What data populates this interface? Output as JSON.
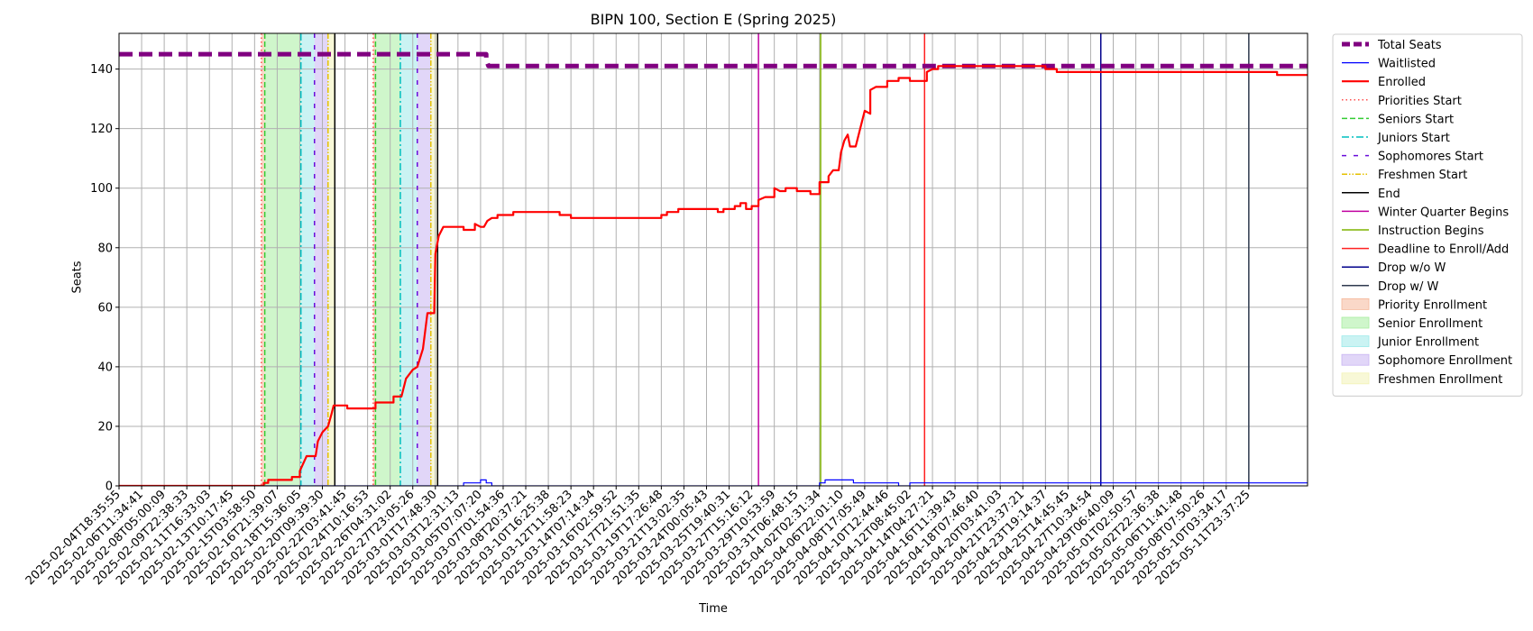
{
  "chart_data": {
    "type": "line",
    "title": "BIPN 100, Section E (Spring 2025)",
    "xlabel": "Time",
    "ylabel": "Seats",
    "ylim": [
      0,
      152
    ],
    "yticks": [
      0,
      20,
      40,
      60,
      80,
      100,
      120,
      140
    ],
    "grid": true,
    "legend_position": "outside-right",
    "xtick_labels": [
      "2025-02-04T18:35:55",
      "2025-02-06T11:34:41",
      "2025-02-08T05:00:09",
      "2025-02-09T22:38:33",
      "2025-02-11T16:33:03",
      "2025-02-13T10:17:45",
      "2025-02-15T03:58:50",
      "2025-02-16T21:39:07",
      "2025-02-18T15:36:05",
      "2025-02-20T09:39:30",
      "2025-02-22T03:41:45",
      "2025-02-24T10:16:53",
      "2025-02-26T04:31:02",
      "2025-02-27T23:05:26",
      "2025-03-01T17:48:30",
      "2025-03-03T12:31:13",
      "2025-03-05T07:07:20",
      "2025-03-07T01:54:36",
      "2025-03-08T20:37:21",
      "2025-03-10T16:25:38",
      "2025-03-12T11:58:23",
      "2025-03-14T07:14:34",
      "2025-03-16T02:59:52",
      "2025-03-17T21:51:35",
      "2025-03-19T17:26:48",
      "2025-03-21T13:02:35",
      "2025-03-24T00:05:43",
      "2025-03-25T19:40:31",
      "2025-03-27T15:16:12",
      "2025-03-29T10:53:59",
      "2025-03-31T06:48:15",
      "2025-04-02T02:31:34",
      "2025-04-06T22:01:10",
      "2025-04-08T17:05:49",
      "2025-04-10T12:44:46",
      "2025-04-12T08:45:02",
      "2025-04-14T04:27:21",
      "2025-04-16T11:39:43",
      "2025-04-18T07:46:40",
      "2025-04-20T03:41:03",
      "2025-04-21T23:37:21",
      "2025-04-23T19:14:37",
      "2025-04-25T14:45:45",
      "2025-04-27T10:34:54",
      "2025-04-29T06:40:09",
      "2025-05-01T02:50:57",
      "2025-05-02T22:36:38",
      "2025-05-06T11:41:48",
      "2025-05-08T07:50:26",
      "2025-05-10T03:34:17",
      "2025-05-11T23:37:25"
    ],
    "xtick_positions": [
      0,
      2,
      4,
      6,
      8,
      10,
      12,
      14,
      16,
      18,
      20,
      22,
      24,
      26,
      28,
      30,
      32,
      34,
      36,
      38,
      40,
      42,
      44,
      46,
      48,
      50,
      52,
      54,
      56,
      58,
      60,
      62,
      64,
      66,
      68,
      70,
      72,
      74,
      76,
      78,
      80,
      82,
      84,
      86,
      88,
      90,
      92,
      94,
      96,
      98,
      100
    ],
    "xlim": [
      0,
      105.2
    ],
    "series": [
      {
        "name": "Total Seats",
        "color": "#800080",
        "style": "dashed-thick",
        "points": [
          [
            0,
            145
          ],
          [
            32.5,
            145
          ],
          [
            32.5,
            143
          ],
          [
            32.7,
            141
          ],
          [
            105.2,
            141
          ]
        ]
      },
      {
        "name": "Waitlisted",
        "color": "#0000ff",
        "style": "solid",
        "points": [
          [
            0,
            0
          ],
          [
            30.5,
            0
          ],
          [
            30.5,
            1
          ],
          [
            32,
            1
          ],
          [
            32,
            2
          ],
          [
            32.5,
            2
          ],
          [
            32.5,
            1
          ],
          [
            33,
            1
          ],
          [
            33,
            0
          ],
          [
            62,
            0
          ],
          [
            62,
            1
          ],
          [
            62.5,
            1
          ],
          [
            62.5,
            2
          ],
          [
            65,
            2
          ],
          [
            65,
            1
          ],
          [
            69,
            1
          ],
          [
            69,
            0
          ],
          [
            70,
            0
          ],
          [
            70,
            1
          ],
          [
            105.2,
            1
          ]
        ]
      },
      {
        "name": "Enrolled",
        "color": "#ff0000",
        "style": "solid",
        "points": [
          [
            0,
            0
          ],
          [
            12.8,
            0
          ],
          [
            12.8,
            1
          ],
          [
            13.2,
            1
          ],
          [
            13.2,
            2
          ],
          [
            15.3,
            2
          ],
          [
            15.3,
            3
          ],
          [
            16,
            3
          ],
          [
            16,
            5
          ],
          [
            16.6,
            10
          ],
          [
            17.4,
            10
          ],
          [
            17.6,
            15
          ],
          [
            18,
            18
          ],
          [
            18.5,
            20
          ],
          [
            18.8,
            24
          ],
          [
            19,
            27
          ],
          [
            20.2,
            27
          ],
          [
            20.2,
            26
          ],
          [
            22.7,
            26
          ],
          [
            22.7,
            28
          ],
          [
            24.3,
            28
          ],
          [
            24.3,
            30
          ],
          [
            25,
            30
          ],
          [
            25.4,
            36
          ],
          [
            26,
            39
          ],
          [
            26.4,
            40
          ],
          [
            26.9,
            46
          ],
          [
            27.3,
            58
          ],
          [
            27.9,
            58
          ],
          [
            28,
            78
          ],
          [
            28.3,
            84
          ],
          [
            28.7,
            87
          ],
          [
            30.5,
            87
          ],
          [
            30.5,
            86
          ],
          [
            31.5,
            86
          ],
          [
            31.5,
            88
          ],
          [
            32,
            87
          ],
          [
            32.3,
            87
          ],
          [
            32.6,
            89
          ],
          [
            33,
            90
          ],
          [
            33.5,
            90
          ],
          [
            33.5,
            91
          ],
          [
            34.9,
            91
          ],
          [
            34.9,
            92
          ],
          [
            39,
            92
          ],
          [
            39,
            91
          ],
          [
            40,
            91
          ],
          [
            40,
            90
          ],
          [
            48,
            90
          ],
          [
            48,
            91
          ],
          [
            48.5,
            91
          ],
          [
            48.5,
            92
          ],
          [
            49.5,
            92
          ],
          [
            49.5,
            93
          ],
          [
            53,
            93
          ],
          [
            53,
            92
          ],
          [
            53.5,
            92
          ],
          [
            53.5,
            93
          ],
          [
            54.5,
            93
          ],
          [
            54.5,
            94
          ],
          [
            55,
            94
          ],
          [
            55,
            95
          ],
          [
            55.5,
            95
          ],
          [
            55.5,
            93
          ],
          [
            56,
            93
          ],
          [
            56,
            94
          ],
          [
            56.6,
            94
          ],
          [
            56.6,
            96
          ],
          [
            57.2,
            97
          ],
          [
            58,
            97
          ],
          [
            58,
            100
          ],
          [
            58.5,
            99
          ],
          [
            59,
            99
          ],
          [
            59,
            100
          ],
          [
            60,
            100
          ],
          [
            60,
            99
          ],
          [
            61.2,
            99
          ],
          [
            61.2,
            98
          ],
          [
            62,
            98
          ],
          [
            62,
            102
          ],
          [
            62.8,
            102
          ],
          [
            62.8,
            104
          ],
          [
            63.2,
            106
          ],
          [
            63.7,
            106
          ],
          [
            63.9,
            112
          ],
          [
            64.2,
            116
          ],
          [
            64.5,
            118
          ],
          [
            64.7,
            114
          ],
          [
            65.2,
            114
          ],
          [
            65.6,
            120
          ],
          [
            66,
            126
          ],
          [
            66.5,
            125
          ],
          [
            66.5,
            133
          ],
          [
            67,
            134
          ],
          [
            68,
            134
          ],
          [
            68,
            136
          ],
          [
            69,
            136
          ],
          [
            69,
            137
          ],
          [
            70,
            137
          ],
          [
            70,
            136
          ],
          [
            71.5,
            136
          ],
          [
            71.5,
            139
          ],
          [
            72,
            140
          ],
          [
            72.5,
            140
          ],
          [
            72.5,
            141
          ],
          [
            82,
            141
          ],
          [
            82,
            140
          ],
          [
            83,
            140
          ],
          [
            83,
            139
          ],
          [
            102.5,
            139
          ],
          [
            102.5,
            138
          ],
          [
            105.2,
            138
          ]
        ]
      }
    ],
    "vertical_markers": [
      {
        "name": "Priorities Start",
        "color": "#ff4d4d",
        "style": "dotted",
        "x": [
          12.6,
          22.5
        ]
      },
      {
        "name": "Seniors Start",
        "color": "#33cc33",
        "style": "dashed",
        "x": [
          12.9,
          22.7
        ]
      },
      {
        "name": "Juniors Start",
        "color": "#00bfbf",
        "style": "dashdot",
        "x": [
          16.1,
          24.9
        ]
      },
      {
        "name": "Sophomores Start",
        "color": "#6a0dda",
        "style": "loosedash",
        "x": [
          17.3,
          26.4
        ]
      },
      {
        "name": "Freshmen Start",
        "color": "#e5c100",
        "style": "dashdotdot",
        "x": [
          18.5,
          27.6
        ]
      },
      {
        "name": "End",
        "color": "#000000",
        "style": "solid",
        "x": [
          19.1,
          28.2
        ]
      },
      {
        "name": "Winter Quarter Begins",
        "color": "#c000a0",
        "style": "solid",
        "x": [
          56.6
        ]
      },
      {
        "name": "Instruction Begins",
        "color": "#7fb300",
        "style": "solid",
        "x": [
          62.1
        ]
      },
      {
        "name": "Deadline to Enroll/Add",
        "color": "#ff2020",
        "style": "solid",
        "x": [
          71.3
        ]
      },
      {
        "name": "Drop w/o W",
        "color": "#00008b",
        "style": "solid",
        "x": [
          86.9
        ]
      },
      {
        "name": "Drop w/ W",
        "color": "#2f3a4f",
        "style": "solid",
        "x": [
          100
        ]
      }
    ],
    "shaded_periods": [
      {
        "name": "Priority Enrollment",
        "color": "#f5b89a",
        "ranges": [
          [
            12.6,
            12.9
          ],
          [
            22.5,
            22.7
          ]
        ]
      },
      {
        "name": "Senior Enrollment",
        "color": "#a8eea0",
        "ranges": [
          [
            12.9,
            16.1
          ],
          [
            22.7,
            24.9
          ]
        ]
      },
      {
        "name": "Junior Enrollment",
        "color": "#9eeaea",
        "ranges": [
          [
            16.1,
            17.3
          ],
          [
            24.9,
            26.4
          ]
        ]
      },
      {
        "name": "Sophomore Enrollment",
        "color": "#c8b5f2",
        "ranges": [
          [
            17.3,
            18.5
          ],
          [
            26.4,
            27.6
          ]
        ]
      },
      {
        "name": "Freshmen Enrollment",
        "color": "#f3f3b6",
        "ranges": [
          [
            18.5,
            19.1
          ],
          [
            27.6,
            28.2
          ]
        ]
      }
    ]
  }
}
